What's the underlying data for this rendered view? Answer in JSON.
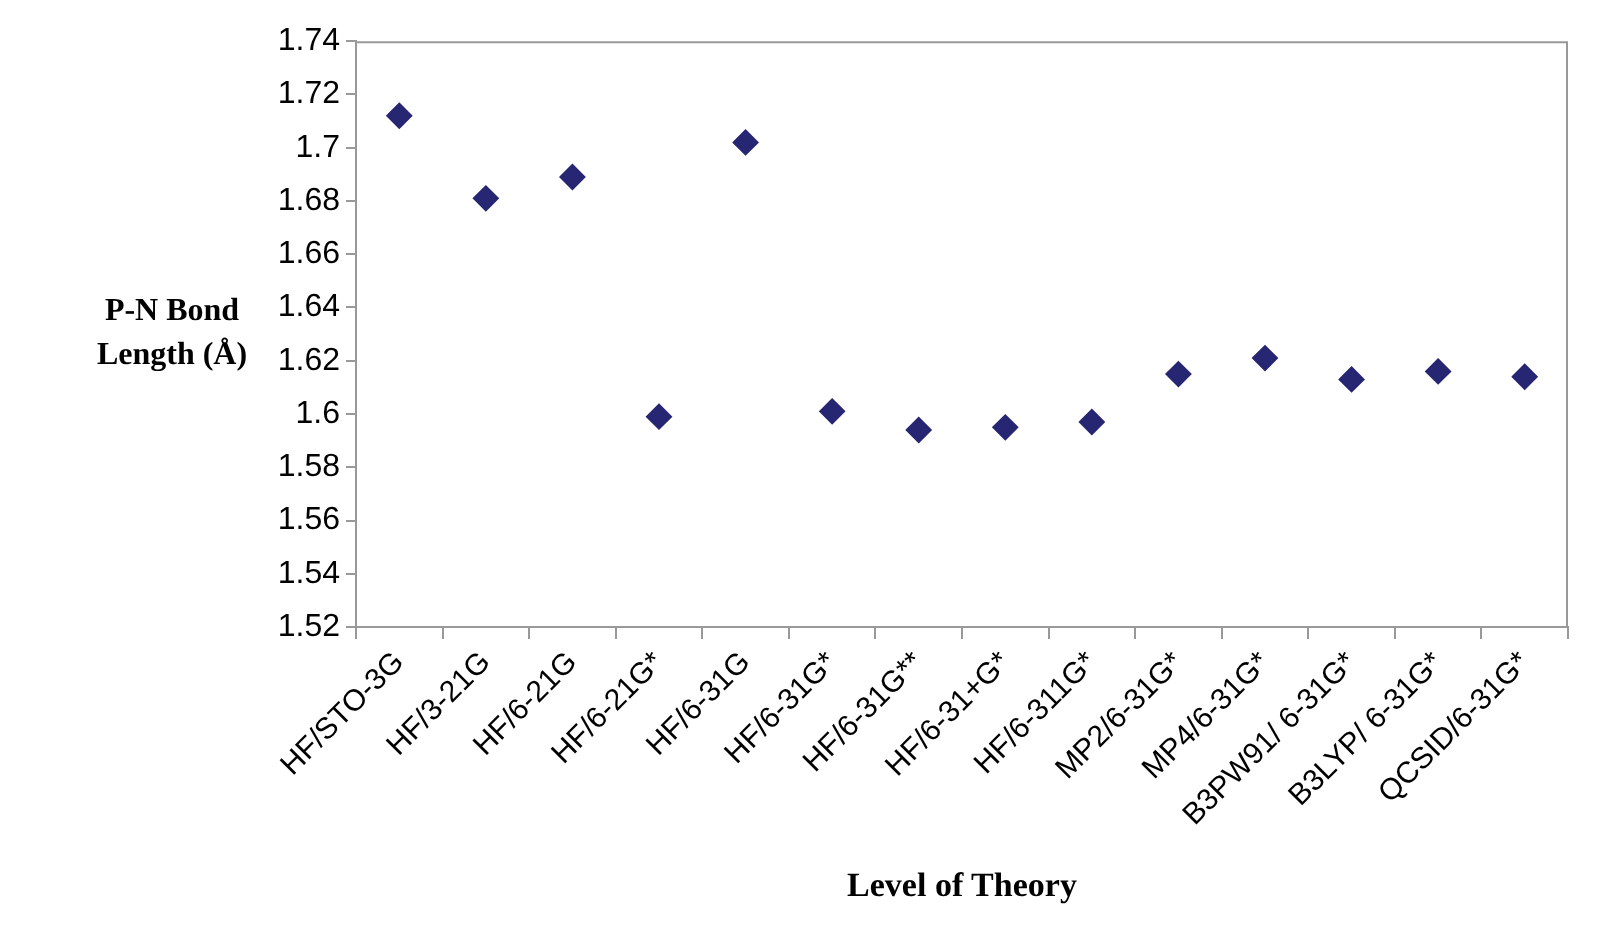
{
  "chart_data": {
    "type": "scatter",
    "xlabel": "Level of Theory",
    "ylabel": "P-N Bond Length (Å)",
    "categories": [
      "HF/STO-3G",
      "HF/3-21G",
      "HF/6-21G",
      "HF/6-21G*",
      "HF/6-31G",
      "HF/6-31G*",
      "HF/6-31G**",
      "HF/6-31+G*",
      "HF/6-311G*",
      "MP2/6-31G*",
      "MP4/6-31G*",
      "B3PW91/ 6-31G*",
      "B3LYP/ 6-31G*",
      "QCSID/6-31G*"
    ],
    "series": [
      {
        "color": "#262673",
        "values": [
          1.712,
          1.681,
          1.689,
          1.599,
          1.702,
          1.601,
          1.594,
          1.595,
          1.597,
          1.615,
          1.621,
          1.613,
          1.616,
          1.614
        ]
      }
    ],
    "ylim": [
      1.52,
      1.74
    ],
    "yticks": [
      1.52,
      1.54,
      1.56,
      1.58,
      1.6,
      1.62,
      1.64,
      1.66,
      1.68,
      1.7,
      1.72,
      1.74
    ],
    "marker": "diamond",
    "grid": false,
    "legend": false
  }
}
